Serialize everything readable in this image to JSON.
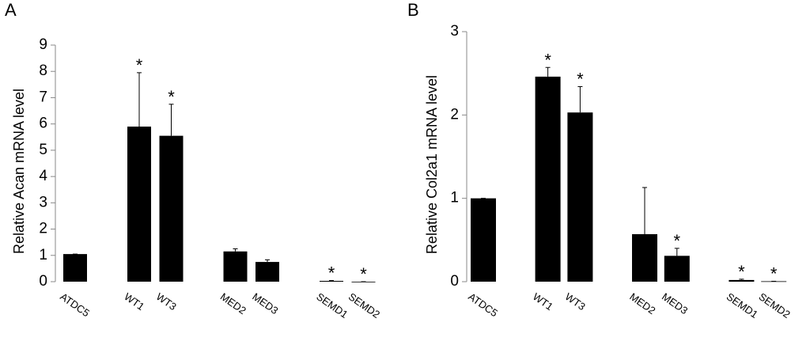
{
  "chart_data": [
    {
      "type": "bar",
      "panel": "A",
      "y_label": "Relative Acan mRNA level",
      "categories": [
        "ATDC5",
        "WT1",
        "WT3",
        "MED2",
        "MED3",
        "SEMD1",
        "SEMD2"
      ],
      "values": [
        1.05,
        5.9,
        5.55,
        1.15,
        0.75,
        0.03,
        0.0
      ],
      "errors": [
        0,
        2.05,
        1.2,
        0.1,
        0.08,
        0.01,
        0
      ],
      "markers": [
        null,
        "*",
        "*",
        null,
        null,
        "*",
        "*"
      ],
      "color": "#000000",
      "ylim": [
        0,
        9
      ],
      "yticks": [
        0,
        1,
        2,
        3,
        4,
        5,
        6,
        7,
        8,
        9
      ]
    },
    {
      "type": "bar",
      "panel": "B",
      "y_label": "Relative Col2a1 mRNA level",
      "categories": [
        "ATDC5",
        "WT1",
        "WT3",
        "MED2",
        "MED3",
        "SEMD1",
        "SEMD2"
      ],
      "values": [
        1.0,
        2.46,
        2.03,
        0.57,
        0.31,
        0.02,
        0.005
      ],
      "errors": [
        0,
        0.11,
        0.31,
        0.56,
        0.09,
        0.01,
        0
      ],
      "markers": [
        null,
        "*",
        "*",
        null,
        "*",
        "*",
        "*"
      ],
      "color": "#000000",
      "ylim": [
        0,
        3
      ],
      "yticks": [
        0,
        1,
        2,
        3
      ]
    }
  ]
}
